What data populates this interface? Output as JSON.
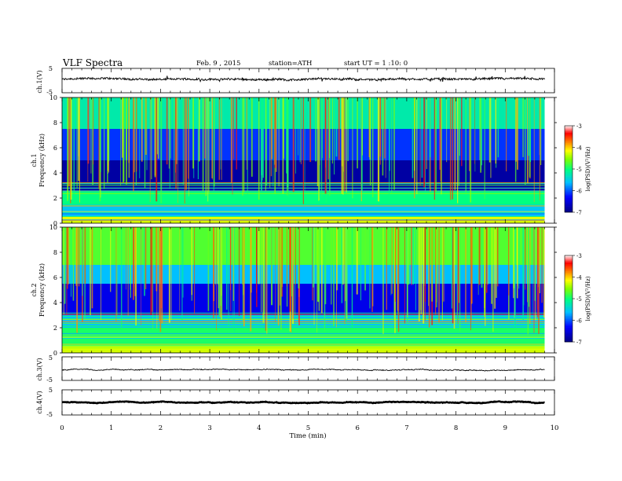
{
  "header": {
    "title": "VLF  Spectra",
    "date": "Feb. 9  , 2015",
    "station": "station=ATH",
    "start": "start  UT =   1  :10: 0"
  },
  "chart_data": [
    {
      "type": "line",
      "name": "ch1-waveform",
      "ylabel": "ch.1(V)",
      "yticks": [
        "5",
        "-5"
      ],
      "ylim": [
        -5,
        5
      ],
      "xlim": [
        0,
        10
      ],
      "data_end_x": 9.8,
      "approx_mean": 0.5,
      "approx_amplitude": 0.8
    },
    {
      "type": "heatmap",
      "name": "ch1-spectrogram",
      "ylabel": "ch.1\nFrequency (kHz)",
      "ylim": [
        0,
        10
      ],
      "yticks": [
        "0",
        "2",
        "4",
        "6",
        "8",
        "10"
      ],
      "xlim": [
        0,
        10
      ],
      "data_end_x": 9.8,
      "colorbar": {
        "label": "log(PSD)(V²/Hz)",
        "ticks": [
          "-3",
          "-4",
          "-5",
          "-6",
          "-7"
        ],
        "range": [
          -7,
          -3
        ]
      },
      "bands": [
        {
          "from": 0,
          "to": 0.5,
          "level": -4.2
        },
        {
          "from": 0.5,
          "to": 1.5,
          "level": -5.6
        },
        {
          "from": 1.5,
          "to": 2.6,
          "level": -5.0
        },
        {
          "from": 2.6,
          "to": 5.0,
          "level": -6.8
        },
        {
          "from": 5.0,
          "to": 7.5,
          "level": -6.1
        },
        {
          "from": 7.5,
          "to": 10,
          "level": -5.2
        }
      ],
      "colors": [
        "#00007f",
        "#0000ff",
        "#00bfff",
        "#00ff7f",
        "#7fff00",
        "#ffff00",
        "#ff7f00",
        "#ff0000",
        "#ffd0d0"
      ]
    },
    {
      "type": "heatmap",
      "name": "ch2-spectrogram",
      "ylabel": "ch.2\nFrequency (kHz)",
      "ylim": [
        0,
        10
      ],
      "yticks": [
        "0",
        "2",
        "4",
        "6",
        "8",
        "10"
      ],
      "xlim": [
        0,
        10
      ],
      "data_end_x": 9.8,
      "colorbar": {
        "label": "log(PSD)(V²/Hz)",
        "ticks": [
          "-3",
          "-4",
          "-5",
          "-6",
          "-7"
        ],
        "range": [
          -7,
          -3
        ]
      },
      "bands": [
        {
          "from": 0,
          "to": 0.5,
          "level": -4.3
        },
        {
          "from": 0.5,
          "to": 2.0,
          "level": -4.9
        },
        {
          "from": 2.0,
          "to": 3.0,
          "level": -5.6
        },
        {
          "from": 3.0,
          "to": 5.5,
          "level": -6.4
        },
        {
          "from": 5.5,
          "to": 7.0,
          "level": -5.6
        },
        {
          "from": 7.0,
          "to": 10,
          "level": -4.7
        }
      ],
      "colors": [
        "#00007f",
        "#0000ff",
        "#00bfff",
        "#00ff7f",
        "#7fff00",
        "#ffff00",
        "#ff7f00",
        "#ff0000",
        "#ffd0d0"
      ]
    },
    {
      "type": "line",
      "name": "ch3-waveform",
      "ylabel": "ch.3(V)",
      "yticks": [
        "5",
        "-5"
      ],
      "ylim": [
        -5,
        5
      ],
      "xlim": [
        0,
        10
      ],
      "data_end_x": 9.8,
      "approx_mean": -0.5,
      "approx_amplitude": 0.3
    },
    {
      "type": "line",
      "name": "ch4-waveform",
      "ylabel": "ch.4(V)",
      "yticks": [
        "5",
        "-5"
      ],
      "ylim": [
        -5,
        5
      ],
      "xlim": [
        0,
        10
      ],
      "data_end_x": 9.8,
      "approx_mean": 0.0,
      "approx_amplitude": 0.15
    }
  ],
  "xaxis": {
    "label": "Time  (min)",
    "ticks": [
      "0",
      "1",
      "2",
      "3",
      "4",
      "5",
      "6",
      "7",
      "8",
      "9",
      "10"
    ]
  }
}
